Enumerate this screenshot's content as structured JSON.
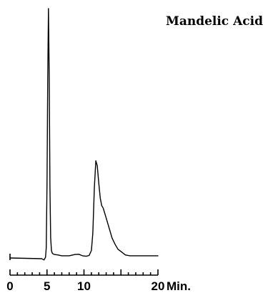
{
  "chart_data": {
    "type": "line",
    "title": "Mandelic Acid",
    "xlabel": "",
    "ylabel": "",
    "x_unit": "Min.",
    "xlim": [
      0,
      20
    ],
    "ylim": [
      0,
      100
    ],
    "x_ticks": [
      0,
      5,
      10,
      20
    ],
    "grid": false,
    "legend": "none",
    "colors": {
      "trace": "#000000",
      "background": "#ffffff"
    },
    "series": [
      {
        "x": [
          0,
          4.3,
          4.6,
          4.8,
          4.9,
          5.0,
          5.1,
          5.2,
          5.3,
          5.4,
          5.5,
          5.6,
          5.7,
          5.8,
          6.0,
          6.5,
          7.0,
          8.0,
          8.8,
          9.3,
          9.8,
          10.3,
          10.7,
          11.0,
          11.2,
          11.4,
          11.6,
          11.8,
          12.0,
          12.2,
          12.4,
          12.6,
          12.8,
          13.0,
          13.4,
          13.8,
          14.2,
          14.6,
          15.0,
          15.6,
          16.2,
          17.0,
          17.5,
          18.0,
          19.0,
          20.0
        ],
        "y": [
          0,
          -0.3,
          -0.8,
          0.3,
          4,
          30,
          72,
          100,
          72,
          28,
          8,
          3,
          2,
          1.7,
          1.4,
          1.2,
          0.9,
          0.9,
          1.4,
          1.5,
          0.9,
          0.7,
          1.0,
          3,
          10,
          28,
          39,
          37,
          30,
          24,
          21,
          20,
          18,
          16,
          12,
          8,
          5.5,
          3.5,
          2.6,
          1.2,
          0.9,
          0.9,
          0.9,
          0.9,
          0.9,
          0.9
        ]
      }
    ]
  }
}
